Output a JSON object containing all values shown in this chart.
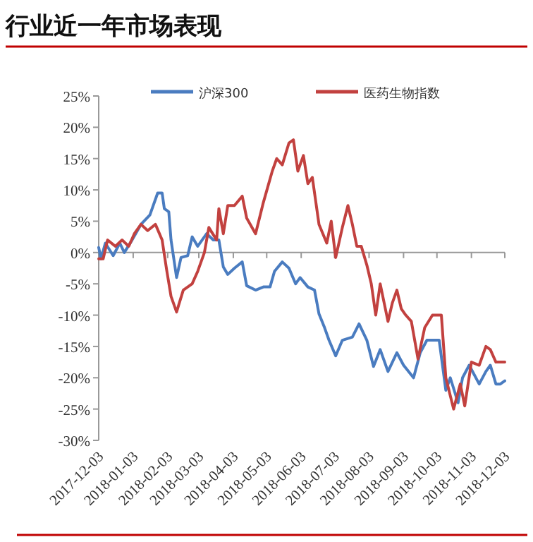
{
  "chart_data": {
    "type": "line",
    "title": "行业近一年市场表现",
    "xlim": [
      "2017-12-03",
      "2018-12-03"
    ],
    "xticks": [
      "2017-12-03",
      "2018-01-03",
      "2018-02-03",
      "2018-03-03",
      "2018-04-03",
      "2018-05-03",
      "2018-06-03",
      "2018-07-03",
      "2018-08-03",
      "2018-09-03",
      "2018-10-03",
      "2018-11-03",
      "2018-12-03"
    ],
    "ylim": [
      -30,
      25
    ],
    "yticks": [
      {
        "value": -30,
        "label": "-30%"
      },
      {
        "value": -25,
        "label": "-25%"
      },
      {
        "value": -20,
        "label": "-20%"
      },
      {
        "value": -15,
        "label": "-15%"
      },
      {
        "value": -10,
        "label": "-10%"
      },
      {
        "value": -5,
        "label": "-5%"
      },
      {
        "value": 0,
        "label": "0%"
      },
      {
        "value": 5,
        "label": "5%"
      },
      {
        "value": 10,
        "label": "10%"
      },
      {
        "value": 15,
        "label": "15%"
      },
      {
        "value": 20,
        "label": "20%"
      },
      {
        "value": 25,
        "label": "25%"
      }
    ],
    "legend": "top",
    "marker": "none",
    "line_style": "solid",
    "series": [
      {
        "name": "沪深300",
        "color": "#4a7cc0",
        "x": [
          "2017-12-03",
          "2017-12-05",
          "2017-12-09",
          "2017-12-16",
          "2017-12-22",
          "2017-12-26",
          "2018-01-02",
          "2018-01-10",
          "2018-01-18",
          "2018-01-25",
          "2018-01-29",
          "2018-01-31",
          "2018-02-04",
          "2018-02-06",
          "2018-02-11",
          "2018-02-15",
          "2018-02-21",
          "2018-02-25",
          "2018-03-02",
          "2018-03-10",
          "2018-03-16",
          "2018-03-21",
          "2018-03-25",
          "2018-03-29",
          "2018-04-04",
          "2018-04-11",
          "2018-04-15",
          "2018-04-23",
          "2018-04-30",
          "2018-05-06",
          "2018-05-10",
          "2018-05-17",
          "2018-05-23",
          "2018-05-29",
          "2018-06-02",
          "2018-06-09",
          "2018-06-15",
          "2018-06-19",
          "2018-06-24",
          "2018-06-28",
          "2018-07-04",
          "2018-07-10",
          "2018-07-19",
          "2018-07-25",
          "2018-08-01",
          "2018-08-07",
          "2018-08-13",
          "2018-08-20",
          "2018-08-28",
          "2018-09-03",
          "2018-09-12",
          "2018-09-18",
          "2018-09-24",
          "2018-10-05",
          "2018-10-11",
          "2018-10-15",
          "2018-10-22",
          "2018-10-26",
          "2018-11-01",
          "2018-11-10",
          "2018-11-16",
          "2018-11-20",
          "2018-11-25",
          "2018-11-29",
          "2018-12-03"
        ],
        "values": [
          0.8,
          -1,
          1.5,
          -0.5,
          1.5,
          0,
          2,
          4.5,
          6,
          9.5,
          9.5,
          7,
          6.5,
          2,
          -4,
          -0.8,
          -0.5,
          2.5,
          1,
          3,
          2,
          2,
          -2.3,
          -3.5,
          -2.5,
          -1.5,
          -5.3,
          -6,
          -5.5,
          -5.5,
          -3,
          -1.5,
          -2.5,
          -5,
          -4,
          -5.5,
          -6,
          -9.8,
          -12,
          -14,
          -16.5,
          -14,
          -13.5,
          -11.4,
          -14,
          -18.2,
          -15.5,
          -19,
          -16,
          -18,
          -20,
          -16,
          -14,
          -14,
          -22,
          -20,
          -24,
          -20,
          -18,
          -21,
          -19,
          -18,
          -21,
          -21,
          -20.5
        ]
      },
      {
        "name": "医药生物指数",
        "color": "#c2413f",
        "x": [
          "2017-12-03",
          "2017-12-07",
          "2017-12-11",
          "2017-12-18",
          "2017-12-24",
          "2017-12-30",
          "2018-01-04",
          "2018-01-10",
          "2018-01-16",
          "2018-01-23",
          "2018-01-29",
          "2018-02-02",
          "2018-02-06",
          "2018-02-11",
          "2018-02-17",
          "2018-02-25",
          "2018-03-02",
          "2018-03-08",
          "2018-03-12",
          "2018-03-19",
          "2018-03-21",
          "2018-03-25",
          "2018-03-29",
          "2018-04-04",
          "2018-04-11",
          "2018-04-15",
          "2018-04-23",
          "2018-04-30",
          "2018-05-08",
          "2018-05-12",
          "2018-05-17",
          "2018-05-23",
          "2018-05-27",
          "2018-05-31",
          "2018-06-05",
          "2018-06-09",
          "2018-06-13",
          "2018-06-19",
          "2018-06-26",
          "2018-06-30",
          "2018-07-04",
          "2018-07-10",
          "2018-07-15",
          "2018-07-19",
          "2018-07-23",
          "2018-07-27",
          "2018-08-01",
          "2018-08-05",
          "2018-08-09",
          "2018-08-13",
          "2018-08-20",
          "2018-08-24",
          "2018-08-28",
          "2018-09-01",
          "2018-09-05",
          "2018-09-10",
          "2018-09-16",
          "2018-09-22",
          "2018-09-29",
          "2018-10-07",
          "2018-10-11",
          "2018-10-18",
          "2018-10-24",
          "2018-10-28",
          "2018-11-03",
          "2018-11-10",
          "2018-11-16",
          "2018-11-20",
          "2018-11-25",
          "2018-11-29",
          "2018-12-03"
        ],
        "values": [
          -1,
          -1,
          2,
          1,
          2,
          1,
          3,
          4.5,
          3.5,
          4.5,
          2,
          -2.7,
          -7,
          -9.5,
          -6,
          -5,
          -3,
          0,
          4,
          2,
          7,
          3,
          7.5,
          7.5,
          9,
          5.5,
          3,
          8,
          13,
          15,
          14,
          17.5,
          18,
          13,
          15.5,
          11,
          12,
          4.5,
          1.5,
          5,
          -0.8,
          4,
          7.5,
          4.5,
          1,
          1,
          -2,
          -5,
          -10,
          -5,
          -11,
          -8,
          -6,
          -9,
          -10,
          -11,
          -17,
          -12,
          -10,
          -10,
          -20,
          -25,
          -21,
          -24.5,
          -17.5,
          -18,
          -15,
          -15.5,
          -17.5,
          -17.5,
          -17.5
        ]
      }
    ]
  }
}
